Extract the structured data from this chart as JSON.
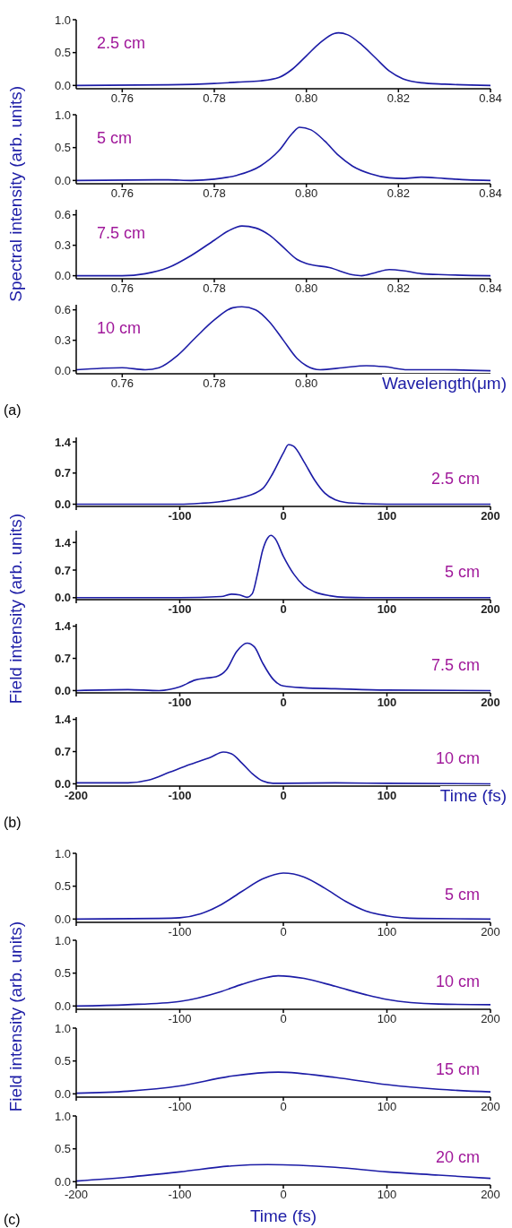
{
  "chart_data": [
    {
      "type": "line",
      "ylabel": "Spectral intensity (arb. units)",
      "annotations": [
        "2.5 cm"
      ],
      "color": "#1c1ca6",
      "xlim": [
        0.75,
        0.84
      ],
      "xticks": [
        0.76,
        0.78,
        {
          "value": 0.8,
          "label": "0.80"
        },
        0.82,
        0.84
      ],
      "ylim": [
        -0.05,
        1
      ],
      "yticks": [
        {
          "value": 0,
          "label": "0.0"
        },
        {
          "value": 0.5,
          "label": "0.5"
        },
        {
          "value": 1,
          "label": "1.0"
        }
      ],
      "x": [
        0.75,
        0.77,
        0.78,
        0.785,
        0.79,
        0.794,
        0.797,
        0.8,
        0.803,
        0.806,
        0.807,
        0.809,
        0.812,
        0.815,
        0.818,
        0.821,
        0.825,
        0.83,
        0.84
      ],
      "values": [
        0,
        0.01,
        0.03,
        0.05,
        0.07,
        0.12,
        0.25,
        0.45,
        0.65,
        0.79,
        0.8,
        0.77,
        0.62,
        0.42,
        0.22,
        0.1,
        0.04,
        0.02,
        0
      ]
    },
    {
      "type": "line",
      "annotations": [
        "5 cm"
      ],
      "color": "#1c1ca6",
      "xlim": [
        0.75,
        0.84
      ],
      "xticks": [
        0.76,
        0.78,
        {
          "value": 0.8,
          "label": "0.80"
        },
        0.82,
        0.84
      ],
      "ylim": [
        -0.05,
        1
      ],
      "yticks": [
        {
          "value": 0,
          "label": "0.0"
        },
        {
          "value": 0.5,
          "label": "0.5"
        },
        {
          "value": 1,
          "label": "1.0"
        }
      ],
      "x": [
        0.75,
        0.77,
        0.775,
        0.78,
        0.785,
        0.79,
        0.794,
        0.797,
        0.7985,
        0.801,
        0.804,
        0.807,
        0.81,
        0.814,
        0.818,
        0.821,
        0.825,
        0.83,
        0.835,
        0.84
      ],
      "values": [
        0,
        0.01,
        0,
        0.02,
        0.08,
        0.22,
        0.45,
        0.72,
        0.81,
        0.77,
        0.6,
        0.38,
        0.22,
        0.1,
        0.04,
        0.03,
        0.05,
        0.03,
        0.01,
        0
      ]
    },
    {
      "type": "line",
      "annotations": [
        "7.5 cm"
      ],
      "color": "#1c1ca6",
      "xlim": [
        0.75,
        0.84
      ],
      "xticks": [
        0.76,
        0.78,
        {
          "value": 0.8,
          "label": "0.80"
        },
        0.82,
        0.84
      ],
      "ylim": [
        -0.03,
        0.65
      ],
      "yticks": [
        {
          "value": 0,
          "label": "0.0"
        },
        0.3,
        0.6
      ],
      "x": [
        0.75,
        0.76,
        0.765,
        0.77,
        0.775,
        0.78,
        0.783,
        0.786,
        0.789,
        0.792,
        0.795,
        0.798,
        0.8,
        0.805,
        0.81,
        0.812,
        0.815,
        0.818,
        0.821,
        0.825,
        0.83,
        0.84
      ],
      "values": [
        0,
        0,
        0.02,
        0.08,
        0.2,
        0.35,
        0.44,
        0.49,
        0.47,
        0.4,
        0.28,
        0.16,
        0.12,
        0.08,
        0.01,
        0,
        0.03,
        0.06,
        0.05,
        0.02,
        0.01,
        0
      ]
    },
    {
      "type": "line",
      "annotations": [
        "10 cm",
        "(a)"
      ],
      "xlabel": "Wavelength(μm)",
      "color": "#1c1ca6",
      "xlim": [
        0.75,
        0.84
      ],
      "xticks": [
        0.76,
        0.78,
        {
          "value": 0.8,
          "label": "0.80"
        },
        {
          "value": 0.82,
          "label": null
        },
        {
          "value": 0.84,
          "label": null
        }
      ],
      "ylim": [
        -0.03,
        0.65
      ],
      "yticks": [
        {
          "value": 0,
          "label": "0.0"
        },
        0.3,
        0.6
      ],
      "x": [
        0.75,
        0.76,
        0.765,
        0.768,
        0.772,
        0.776,
        0.78,
        0.784,
        0.786,
        0.789,
        0.792,
        0.795,
        0.798,
        0.8,
        0.803,
        0.808,
        0.813,
        0.817,
        0.822,
        0.83,
        0.84
      ],
      "values": [
        0.01,
        0.03,
        0.01,
        0.03,
        0.15,
        0.33,
        0.5,
        0.62,
        0.63,
        0.6,
        0.48,
        0.3,
        0.12,
        0.05,
        0.01,
        0.03,
        0.05,
        0.04,
        0.01,
        0.01,
        0
      ]
    },
    {
      "type": "line",
      "ylabel": "Field intensity (arb. units)",
      "annotations": [
        "2.5 cm"
      ],
      "color": "#1c1ca6",
      "xlim": [
        -200,
        200
      ],
      "xticks": [
        {
          "value": -200,
          "label": null
        },
        -100,
        0,
        100,
        200
      ],
      "ylim": [
        -0.05,
        1.5
      ],
      "yticks": [
        {
          "value": 0,
          "label": "0.0"
        },
        0.7,
        1.4
      ],
      "x": [
        -200,
        -100,
        -80,
        -60,
        -40,
        -20,
        -10,
        0,
        5,
        10,
        20,
        30,
        40,
        50,
        60,
        80,
        100,
        200
      ],
      "values": [
        0,
        0,
        0.02,
        0.06,
        0.15,
        0.35,
        0.7,
        1.15,
        1.34,
        1.3,
        0.95,
        0.55,
        0.25,
        0.1,
        0.04,
        0.01,
        0,
        0
      ]
    },
    {
      "type": "line",
      "annotations": [
        "5 cm"
      ],
      "color": "#1c1ca6",
      "xlim": [
        -200,
        200
      ],
      "xticks": [
        {
          "value": -200,
          "label": null
        },
        -100,
        0,
        100,
        200
      ],
      "ylim": [
        -0.05,
        1.7
      ],
      "yticks": [
        {
          "value": 0,
          "label": "0.0"
        },
        0.7,
        1.4
      ],
      "x": [
        -200,
        -100,
        -60,
        -50,
        -42,
        -35,
        -30,
        -25,
        -20,
        -15,
        -12,
        -8,
        0,
        10,
        20,
        30,
        45,
        60,
        80,
        200
      ],
      "values": [
        0,
        0,
        0.03,
        0.09,
        0.07,
        0.01,
        0.1,
        0.6,
        1.2,
        1.52,
        1.58,
        1.5,
        1.05,
        0.6,
        0.3,
        0.15,
        0.05,
        0.01,
        0,
        0
      ]
    },
    {
      "type": "line",
      "annotations": [
        "7.5 cm"
      ],
      "color": "#1c1ca6",
      "xlim": [
        -200,
        200
      ],
      "xticks": [
        {
          "value": -200,
          "label": null
        },
        -100,
        0,
        100,
        200
      ],
      "ylim": [
        -0.05,
        1.45
      ],
      "yticks": [
        {
          "value": 0,
          "label": "0.0"
        },
        0.7,
        1.4
      ],
      "x": [
        -200,
        -150,
        -120,
        -100,
        -85,
        -75,
        -65,
        -55,
        -45,
        -35,
        -28,
        -20,
        -10,
        0,
        20,
        50,
        100,
        200
      ],
      "values": [
        0,
        0.02,
        0,
        0.08,
        0.23,
        0.27,
        0.3,
        0.45,
        0.85,
        1.03,
        0.95,
        0.6,
        0.25,
        0.1,
        0.06,
        0.04,
        0.01,
        0
      ]
    },
    {
      "type": "line",
      "annotations": [
        "10 cm",
        "(b)"
      ],
      "xlabel": "Time (fs)",
      "color": "#1c1ca6",
      "xlim": [
        -200,
        200
      ],
      "xticks": [
        -200,
        -100,
        0,
        100,
        {
          "value": 200,
          "label": null
        }
      ],
      "ylim": [
        -0.05,
        1.45
      ],
      "yticks": [
        {
          "value": 0,
          "label": "0.0"
        },
        0.7,
        1.4
      ],
      "x": [
        -200,
        -150,
        -130,
        -110,
        -90,
        -70,
        -58,
        -50,
        -40,
        -30,
        -20,
        -10,
        0,
        50,
        100,
        200
      ],
      "values": [
        0.02,
        0.02,
        0.08,
        0.25,
        0.42,
        0.58,
        0.69,
        0.65,
        0.45,
        0.22,
        0.06,
        0.01,
        0.01,
        0.02,
        0.01,
        0
      ]
    },
    {
      "type": "line",
      "ylabel": "Field intensity (arb. units)",
      "annotations": [
        "5 cm"
      ],
      "color": "#1c1ca6",
      "xlim": [
        -200,
        200
      ],
      "xticks": [
        {
          "value": -200,
          "label": null
        },
        -100,
        0,
        100,
        200
      ],
      "ylim": [
        -0.05,
        1
      ],
      "yticks": [
        {
          "value": 0,
          "label": "0.0"
        },
        {
          "value": 0.5,
          "label": "0.5"
        },
        {
          "value": 1,
          "label": "1.0"
        }
      ],
      "x": [
        -200,
        -120,
        -100,
        -80,
        -60,
        -40,
        -20,
        0,
        20,
        40,
        60,
        80,
        100,
        130,
        200
      ],
      "values": [
        0,
        0.01,
        0.02,
        0.08,
        0.22,
        0.42,
        0.61,
        0.7,
        0.64,
        0.47,
        0.27,
        0.12,
        0.05,
        0.01,
        0
      ]
    },
    {
      "type": "line",
      "annotations": [
        "10 cm"
      ],
      "color": "#1c1ca6",
      "xlim": [
        -200,
        200
      ],
      "xticks": [
        {
          "value": -200,
          "label": null
        },
        -100,
        0,
        100,
        200
      ],
      "ylim": [
        -0.05,
        1
      ],
      "yticks": [
        {
          "value": 0,
          "label": "0.0"
        },
        {
          "value": 0.5,
          "label": "0.5"
        },
        {
          "value": 1,
          "label": "1.0"
        }
      ],
      "x": [
        -200,
        -150,
        -100,
        -60,
        -40,
        -20,
        -5,
        20,
        50,
        80,
        100,
        150,
        200
      ],
      "values": [
        0,
        0.02,
        0.07,
        0.22,
        0.33,
        0.42,
        0.46,
        0.42,
        0.3,
        0.17,
        0.1,
        0.03,
        0.02
      ]
    },
    {
      "type": "line",
      "annotations": [
        "15 cm"
      ],
      "color": "#1c1ca6",
      "xlim": [
        -200,
        200
      ],
      "xticks": [
        {
          "value": -200,
          "label": null
        },
        -100,
        0,
        100,
        200
      ],
      "ylim": [
        -0.05,
        1
      ],
      "yticks": [
        {
          "value": 0,
          "label": "0.0"
        },
        {
          "value": 0.5,
          "label": "0.5"
        },
        {
          "value": 1,
          "label": "1.0"
        }
      ],
      "x": [
        -200,
        -150,
        -100,
        -50,
        -5,
        50,
        100,
        150,
        200
      ],
      "values": [
        0.01,
        0.04,
        0.12,
        0.27,
        0.33,
        0.25,
        0.14,
        0.07,
        0.03
      ]
    },
    {
      "type": "line",
      "annotations": [
        "20 cm",
        "(c)"
      ],
      "xlabel": "Time (fs)",
      "color": "#1c1ca6",
      "xlim": [
        -200,
        200
      ],
      "xticks": [
        -200,
        -100,
        0,
        100,
        200
      ],
      "ylim": [
        -0.05,
        1
      ],
      "yticks": [
        {
          "value": 0,
          "label": "0.0"
        },
        {
          "value": 0.5,
          "label": "0.5"
        },
        {
          "value": 1,
          "label": "1.0"
        }
      ],
      "x": [
        -200,
        -150,
        -100,
        -50,
        -15,
        50,
        100,
        150,
        200
      ],
      "values": [
        0.01,
        0.07,
        0.15,
        0.24,
        0.26,
        0.22,
        0.15,
        0.1,
        0.05
      ]
    }
  ]
}
